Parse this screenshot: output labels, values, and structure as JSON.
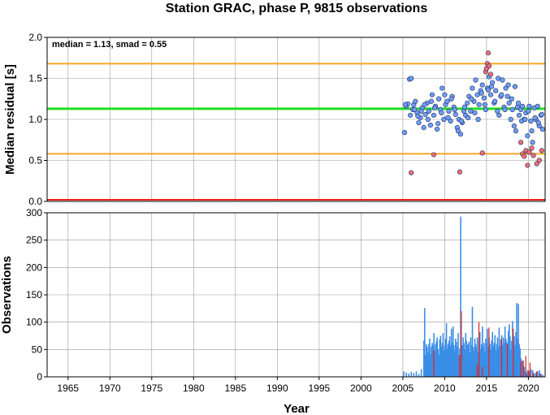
{
  "title": "Station GRAC, phase P, 9815 observations",
  "chart_data": [
    {
      "type": "scatter",
      "ylabel": "Median residual [s]",
      "xlim": [
        1962.5,
        2022.0
      ],
      "ylim": [
        0.0,
        2.0
      ],
      "yticks": [
        0.0,
        0.5,
        1.0,
        1.5,
        2.0
      ],
      "ytick_labels": [
        "0.0",
        "0.5",
        "1.0",
        "1.5",
        "2.0"
      ],
      "grid": true,
      "annotation": "median = 1.13, smad = 0.55",
      "reference_lines": [
        {
          "y": 1.13,
          "color": "#22dd22"
        },
        {
          "y": 1.68,
          "color": "#f5a623"
        },
        {
          "y": 0.58,
          "color": "#f5a623"
        },
        {
          "y": 0.02,
          "color": "#e8201a"
        }
      ],
      "series": [
        {
          "color": "#6f9ef2",
          "x": [
            2005.2,
            2005.4,
            2005.6,
            2005.8,
            2006.0,
            2006.2,
            2006.3,
            2006.5,
            2006.7,
            2006.9,
            2007.1,
            2007.3,
            2007.5,
            2007.7,
            2007.9,
            2008.1,
            2008.3,
            2008.5,
            2008.7,
            2008.9,
            2009.1,
            2009.3,
            2009.5,
            2009.7,
            2009.9,
            2010.1,
            2010.3,
            2010.5,
            2010.7,
            2010.9,
            2011.1,
            2011.3,
            2011.5,
            2011.7,
            2011.9,
            2012.1,
            2012.3,
            2012.5,
            2012.7,
            2012.9,
            2013.1,
            2013.3,
            2013.5,
            2013.7,
            2013.9,
            2014.1,
            2014.3,
            2014.5,
            2014.7,
            2014.9,
            2015.1,
            2015.3,
            2015.5,
            2015.7,
            2015.9,
            2016.1,
            2016.3,
            2016.5,
            2016.7,
            2016.9,
            2017.1,
            2017.3,
            2017.5,
            2017.7,
            2017.9,
            2018.1,
            2018.3,
            2018.5,
            2018.7,
            2018.9,
            2019.1,
            2019.3,
            2019.5,
            2019.7,
            2019.9,
            2020.1,
            2020.3,
            2020.5,
            2020.7,
            2020.9,
            2021.1,
            2021.3,
            2021.5,
            2021.7,
            2005.3,
            2005.9,
            2006.4,
            2006.8,
            2007.2,
            2007.6,
            2008.0,
            2008.4,
            2008.8,
            2009.2,
            2009.6,
            2010.0,
            2010.4,
            2010.8,
            2011.2,
            2011.6,
            2012.0,
            2012.4,
            2012.8,
            2013.2,
            2013.6,
            2014.0,
            2014.4,
            2014.8,
            2015.2,
            2015.6,
            2016.0,
            2016.4,
            2016.8,
            2017.2,
            2017.6,
            2018.0,
            2018.4,
            2018.8,
            2019.2,
            2019.6,
            2020.0,
            2020.4,
            2020.8,
            2021.2,
            2021.6
          ],
          "y": [
            0.84,
            1.16,
            1.19,
            1.49,
            1.5,
            1.12,
            1.18,
            1.22,
            1.08,
            0.96,
            1.02,
            1.14,
            0.9,
            1.06,
            1.2,
            1.1,
            0.93,
            1.3,
            1.05,
            1.16,
            0.88,
            1.25,
            1.12,
            1.38,
            1.0,
            1.18,
            1.22,
            1.1,
            0.98,
            1.28,
            1.15,
            1.06,
            0.9,
            1.0,
            0.82,
            0.96,
            1.1,
            1.05,
            1.2,
            1.28,
            1.1,
            1.38,
            1.22,
            1.48,
            1.3,
            1.18,
            1.35,
            1.42,
            1.26,
            1.12,
            1.38,
            1.52,
            1.3,
            1.45,
            1.2,
            1.35,
            1.1,
            1.05,
            1.28,
            1.48,
            1.15,
            1.38,
            1.28,
            1.2,
            1.0,
            1.12,
            0.92,
            0.86,
            1.15,
            1.05,
            1.12,
            1.16,
            1.0,
            1.08,
            0.8,
            1.16,
            0.98,
            0.72,
            1.14,
            1.0,
            1.16,
            0.92,
            1.05,
            0.88,
            1.18,
            1.05,
            1.12,
            1.04,
            1.1,
            1.18,
            1.0,
            1.22,
            1.14,
            0.95,
            1.08,
            1.3,
            1.02,
            1.25,
            1.12,
            0.86,
            0.98,
            1.15,
            1.02,
            1.25,
            1.08,
            1.0,
            1.32,
            1.18,
            1.36,
            1.4,
            1.22,
            1.5,
            1.3,
            1.12,
            1.42,
            1.25,
            1.4,
            1.2,
            0.98,
            1.0,
            1.1,
            0.86,
            1.02,
            0.96,
            1.06
          ]
        },
        {
          "color": "#f26f6f",
          "x": [
            2006.0,
            2008.7,
            2011.8,
            2014.5,
            2014.9,
            2015.0,
            2015.1,
            2015.2,
            2015.3,
            2015.5,
            2019.1,
            2019.3,
            2019.5,
            2019.7,
            2019.9,
            2020.1,
            2020.4,
            2020.6,
            2021.0,
            2021.3,
            2021.6
          ],
          "y": [
            0.35,
            0.57,
            0.36,
            0.59,
            1.58,
            1.62,
            1.68,
            1.81,
            1.65,
            1.55,
            0.72,
            0.58,
            0.55,
            0.62,
            0.44,
            0.6,
            0.65,
            0.56,
            0.46,
            0.5,
            0.62
          ]
        }
      ]
    },
    {
      "type": "bar",
      "xlabel": "Year",
      "ylabel": "Observations",
      "xlim": [
        1962.5,
        2022.0
      ],
      "ylim": [
        0,
        300
      ],
      "xticks": [
        1965,
        1970,
        1975,
        1980,
        1985,
        1990,
        1995,
        2000,
        2005,
        2010,
        2015,
        2020
      ],
      "xtick_labels": [
        "1965",
        "1970",
        "1975",
        "1980",
        "1985",
        "1990",
        "1995",
        "2000",
        "2005",
        "2010",
        "2015",
        "2020"
      ],
      "yticks": [
        0,
        50,
        100,
        150,
        200,
        250,
        300
      ],
      "ytick_labels": [
        "0",
        "50",
        "100",
        "150",
        "200",
        "250",
        "300"
      ],
      "grid": true,
      "series": [
        {
          "color": "#3b8ee6",
          "x": [
            2005.1,
            2005.4,
            2005.7,
            2006.0,
            2006.3,
            2006.6,
            2006.9,
            2007.2,
            2007.5,
            2007.6,
            2007.7,
            2007.8,
            2007.9,
            2008.0,
            2008.1,
            2008.2,
            2008.3,
            2008.4,
            2008.5,
            2008.6,
            2008.7,
            2008.8,
            2008.9,
            2009.0,
            2009.1,
            2009.2,
            2009.3,
            2009.4,
            2009.5,
            2009.6,
            2009.7,
            2009.8,
            2009.9,
            2010.0,
            2010.1,
            2010.2,
            2010.3,
            2010.4,
            2010.5,
            2010.6,
            2010.7,
            2010.8,
            2010.9,
            2011.0,
            2011.1,
            2011.2,
            2011.3,
            2011.4,
            2011.5,
            2011.6,
            2011.7,
            2011.8,
            2011.9,
            2012.0,
            2012.1,
            2012.2,
            2012.3,
            2012.4,
            2012.5,
            2012.6,
            2012.7,
            2012.8,
            2012.9,
            2013.0,
            2013.1,
            2013.2,
            2013.3,
            2013.4,
            2013.5,
            2013.6,
            2013.7,
            2013.8,
            2013.9,
            2014.0,
            2014.1,
            2014.2,
            2014.3,
            2014.4,
            2014.5,
            2014.6,
            2014.7,
            2014.8,
            2014.9,
            2015.0,
            2015.1,
            2015.2,
            2015.3,
            2015.4,
            2015.5,
            2015.6,
            2015.7,
            2015.8,
            2015.9,
            2016.0,
            2016.1,
            2016.2,
            2016.3,
            2016.4,
            2016.5,
            2016.6,
            2016.7,
            2016.8,
            2016.9,
            2017.0,
            2017.1,
            2017.2,
            2017.3,
            2017.4,
            2017.5,
            2017.6,
            2017.7,
            2017.8,
            2017.9,
            2018.0,
            2018.1,
            2018.2,
            2018.3,
            2018.4,
            2018.5,
            2018.6,
            2018.7,
            2018.8,
            2018.9,
            2019.0,
            2019.1,
            2019.2,
            2019.3,
            2019.4,
            2019.5,
            2019.6,
            2019.7,
            2019.8,
            2019.9,
            2020.0,
            2020.1,
            2020.3,
            2020.5,
            2020.7,
            2020.9,
            2021.1,
            2021.3,
            2021.5,
            2021.7
          ],
          "values": [
            10,
            8,
            6,
            9,
            7,
            10,
            5,
            14,
            66,
            126,
            40,
            60,
            55,
            45,
            60,
            70,
            42,
            55,
            62,
            58,
            80,
            48,
            60,
            65,
            72,
            50,
            40,
            68,
            75,
            55,
            62,
            80,
            48,
            58,
            70,
            98,
            52,
            60,
            66,
            74,
            56,
            88,
            62,
            92,
            58,
            48,
            70,
            64,
            55,
            80,
            40,
            52,
            293,
            46,
            58,
            72,
            62,
            50,
            80,
            66,
            58,
            60,
            64,
            44,
            72,
            58,
            128,
            55,
            48,
            70,
            60,
            54,
            72,
            45,
            58,
            82,
            50,
            60,
            92,
            56,
            62,
            46,
            70,
            62,
            88,
            54,
            72,
            60,
            50,
            66,
            82,
            56,
            62,
            76,
            48,
            60,
            72,
            54,
            90,
            58,
            68,
            76,
            58,
            72,
            62,
            92,
            70,
            64,
            56,
            84,
            96,
            74,
            50,
            66,
            102,
            62,
            74,
            58,
            82,
            135,
            70,
            133,
            60,
            52,
            34,
            30,
            28,
            20,
            18,
            10,
            8,
            6,
            12,
            8,
            10,
            14,
            12,
            6,
            8,
            10,
            12,
            6,
            4
          ]
        },
        {
          "color": "#e8201a",
          "x": [
            2008.7,
            2011.8,
            2012.0,
            2013.9,
            2014.1,
            2014.5,
            2015.3,
            2016.8,
            2017.5,
            2018.2,
            2019.1,
            2019.4,
            2019.7,
            2020.0,
            2020.2,
            2020.6,
            2021.0,
            2021.4
          ],
          "values": [
            48,
            40,
            120,
            22,
            100,
            18,
            90,
            70,
            60,
            88,
            28,
            30,
            38,
            12,
            26,
            8,
            10,
            6
          ]
        }
      ]
    }
  ]
}
